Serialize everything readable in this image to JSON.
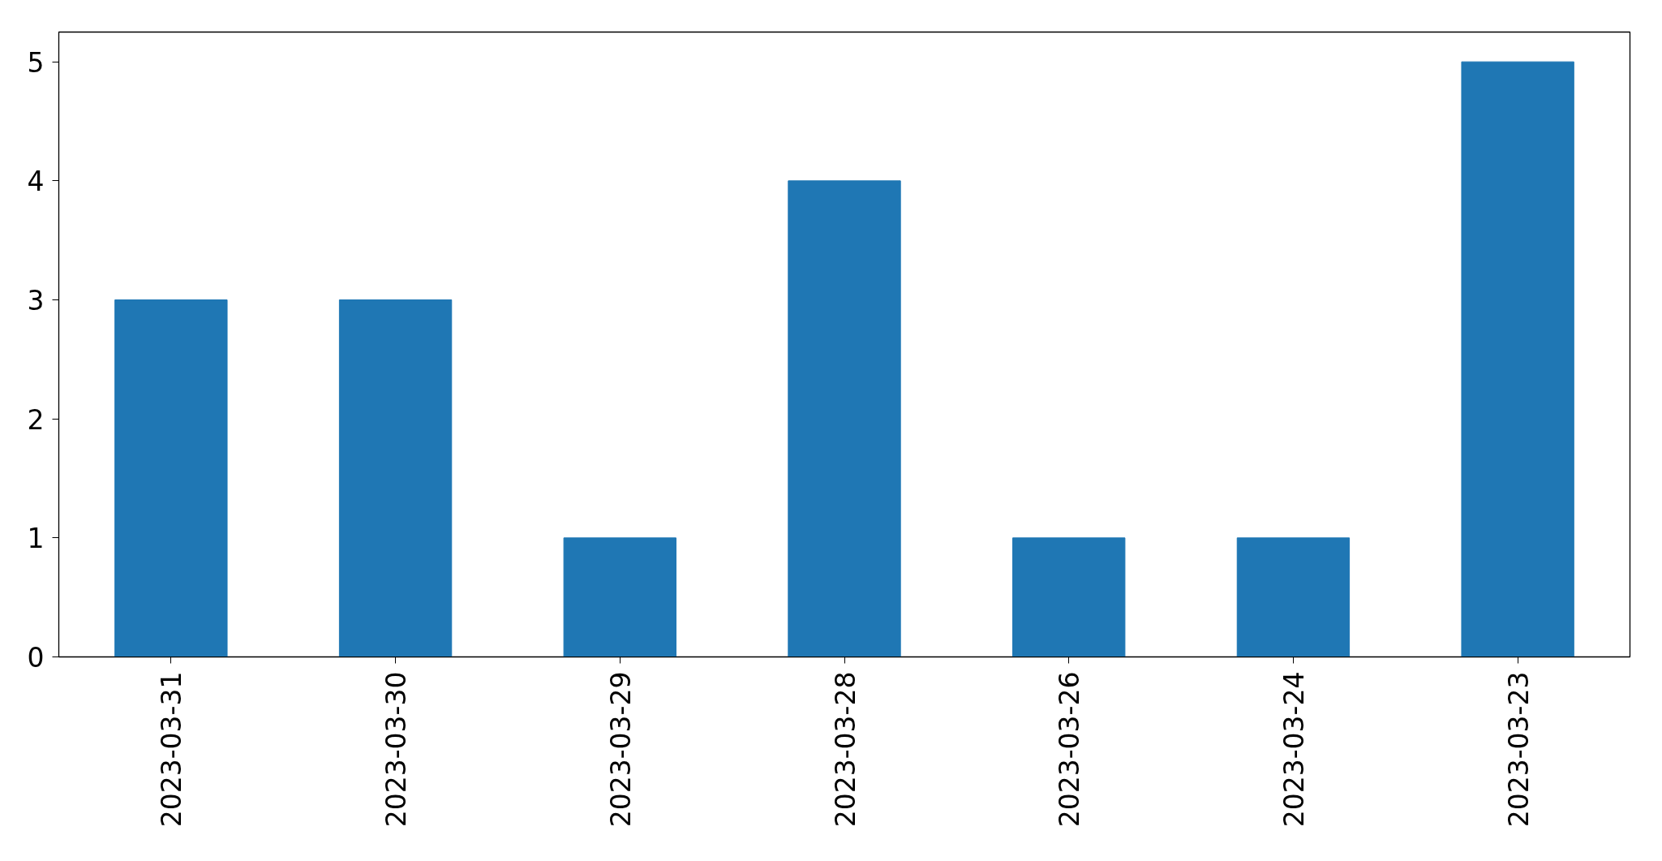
{
  "chart_data": {
    "type": "bar",
    "categories": [
      "2023-03-31",
      "2023-03-30",
      "2023-03-29",
      "2023-03-28",
      "2023-03-26",
      "2023-03-24",
      "2023-03-23"
    ],
    "values": [
      3,
      3,
      1,
      4,
      1,
      1,
      5
    ],
    "color": "#1f77b4",
    "ylim": [
      0,
      5.25
    ],
    "yticks": [
      0,
      1,
      2,
      3,
      4,
      5
    ]
  }
}
